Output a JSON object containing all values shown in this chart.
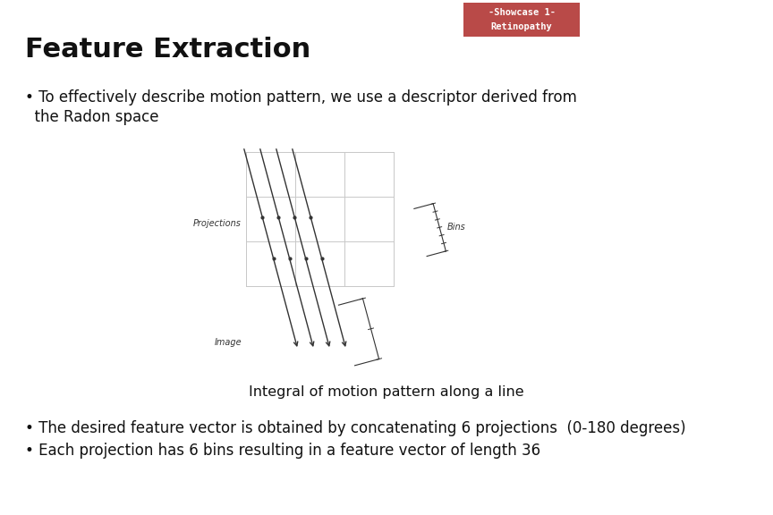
{
  "bg_color": "#ffffff",
  "badge_color": "#b94a48",
  "badge_text1": "-Showcase 1-",
  "badge_text2": "Retinopathy",
  "title": "Feature Extraction",
  "bullet1_line1": "• To effectively describe motion pattern, we use a descriptor derived from",
  "bullet1_line2": "  the Radon space",
  "caption": "Integral of motion pattern along a line",
  "bullet2": "• The desired feature vector is obtained by concatenating 6 projections  (0-180 degrees)",
  "bullet3": "• Each projection has 6 bins resulting in a feature vector of length 36",
  "grid_color": "#c8c8c8",
  "line_color": "#333333",
  "proj_label": "Projections",
  "bins_label": "Bins",
  "image_label": "Image"
}
